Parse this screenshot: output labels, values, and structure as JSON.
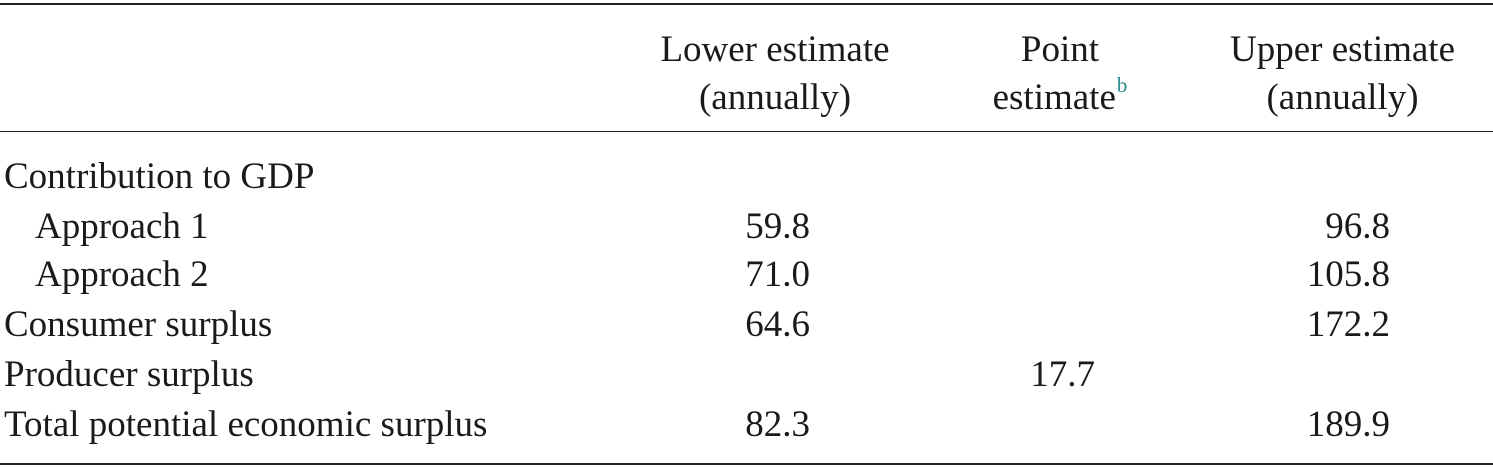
{
  "table": {
    "columns": {
      "lower": [
        "Lower estimate",
        "(annually)"
      ],
      "point": [
        "Point",
        "estimate"
      ],
      "point_footnote": "b",
      "upper": [
        "Upper estimate",
        "(annually)"
      ]
    },
    "rows": [
      {
        "label": "Contribution to GDP",
        "lower": "",
        "point": "",
        "upper": ""
      },
      {
        "label": "Approach 1",
        "lower": "59.8",
        "point": "",
        "upper": "96.8"
      },
      {
        "label": "Approach 2",
        "lower": "71.0",
        "point": "",
        "upper": "105.8"
      },
      {
        "label": "Consumer surplus",
        "lower": "64.6",
        "point": "",
        "upper": "172.2"
      },
      {
        "label": "Producer surplus",
        "lower": "",
        "point": "17.7",
        "upper": ""
      },
      {
        "label": "Total potential economic surplus",
        "lower": "82.3",
        "point": "",
        "upper": "189.9"
      }
    ]
  }
}
